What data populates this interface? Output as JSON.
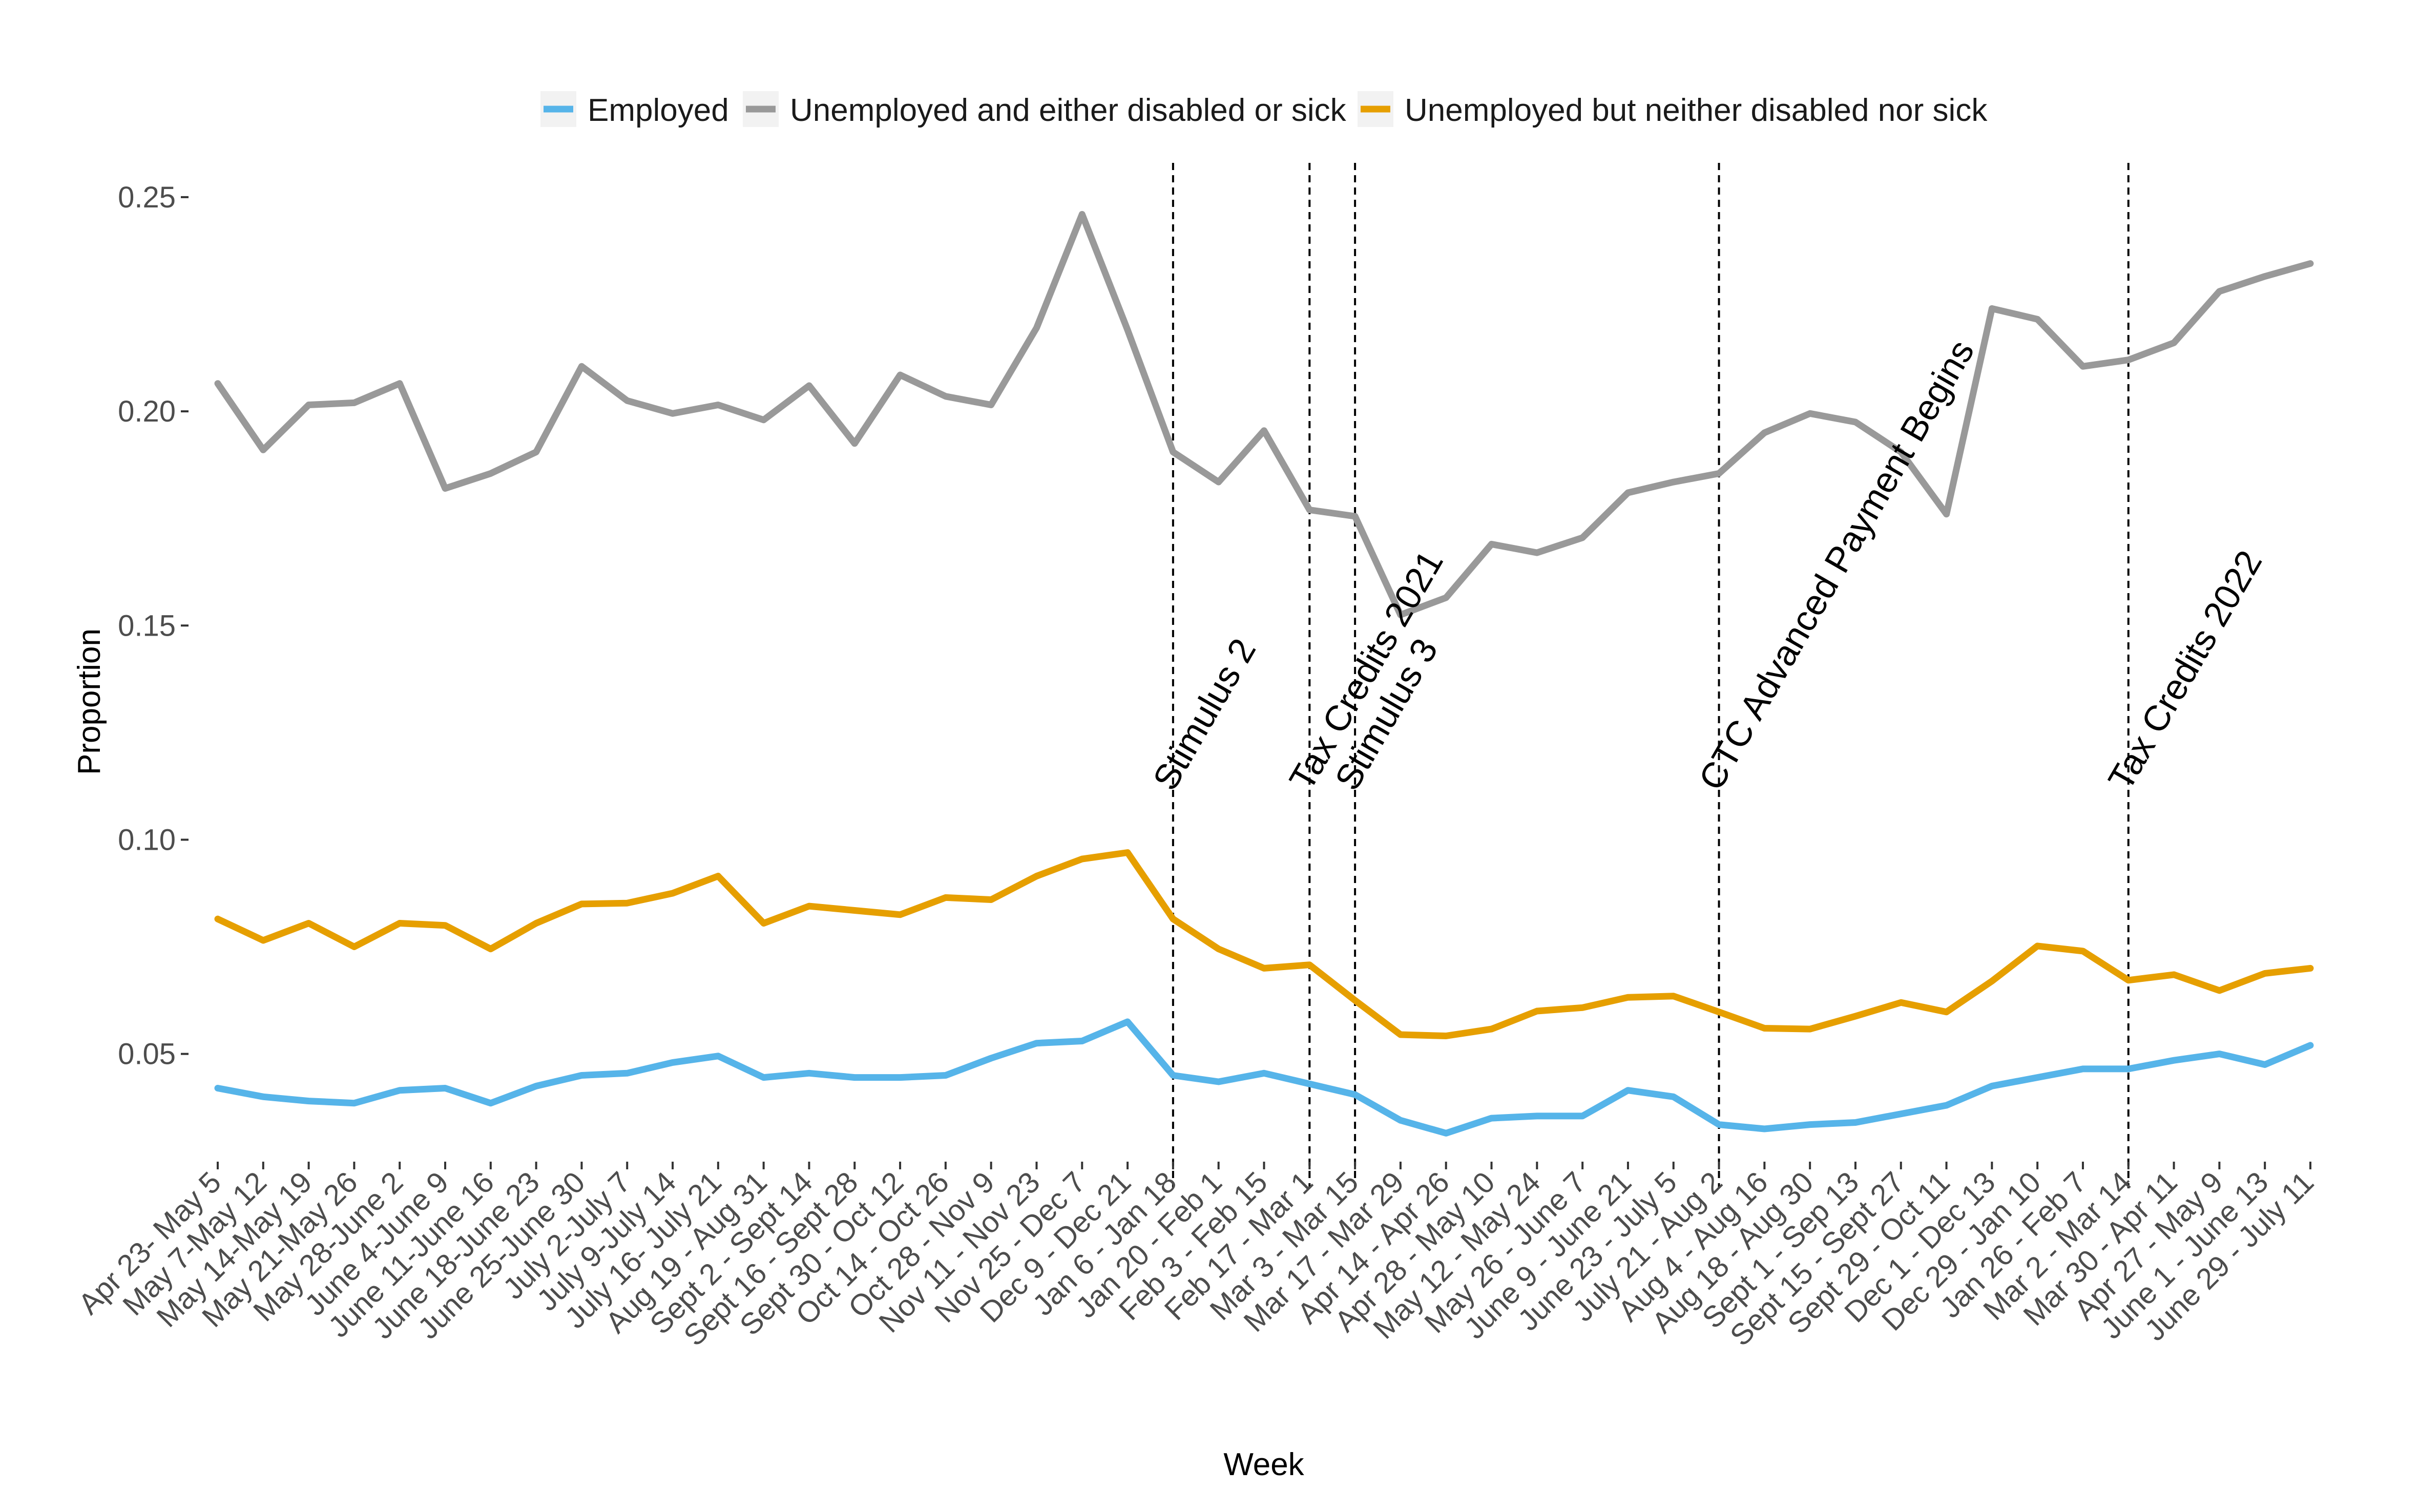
{
  "chart_data": {
    "type": "line",
    "xlabel": "Week",
    "ylabel": "Proportion",
    "ylim": [
      0.027,
      0.258
    ],
    "yticks": [
      0.05,
      0.1,
      0.15,
      0.2,
      0.25
    ],
    "ytick_labels": [
      "0.05",
      "0.10",
      "0.15",
      "0.20",
      "0.25"
    ],
    "grid": false,
    "legend_position": "top",
    "categories": [
      "Apr 23- May 5",
      "May 7-May 12",
      "May 14-May 19",
      "May 21-May 26",
      "May 28-June 2",
      "June 4-June 9",
      "June 11-June 16",
      "June 18-June 23",
      "June 25-June 30",
      "July 2-July 7",
      "July 9-July 14",
      "July 16- July 21",
      "Aug 19 - Aug 31",
      "Sept 2 - Sept 14",
      "Sept 16 - Sept 28",
      "Sept 30 - Oct 12",
      "Oct 14 - Oct 26",
      "Oct 28 - Nov 9",
      "Nov 11 - Nov 23",
      "Nov 25 - Dec 7",
      "Dec 9 - Dec 21",
      "Jan 6 - Jan 18",
      "Jan 20 - Feb 1",
      "Feb 3 - Feb 15",
      "Feb 17 - Mar 1",
      "Mar 3 - Mar 15",
      "Mar 17 - Mar 29",
      "Apr 14 - Apr 26",
      "Apr 28 - May 10",
      "May 12 - May 24",
      "May 26 - June 7",
      "June 9 - June 21",
      "June 23 - July 5",
      "July 21 - Aug 2",
      "Aug 4 - Aug 16",
      "Aug 18 - Aug 30",
      "Sept 1 - Sep 13",
      "Sept 15 - Sept 27",
      "Sept 29 - Oct 11",
      "Dec 1 - Dec 13",
      "Dec 29 - Jan 10",
      "Jan 26 - Feb 7",
      "Mar 2 - Mar 14",
      "Mar 30 - Apr 11",
      "Apr 27 - May 9",
      "June 1 - June 13",
      "June 29 - July 11"
    ],
    "series": [
      {
        "name": "Employed",
        "color": "#56B4E9",
        "values": [
          0.042,
          0.04,
          0.039,
          0.0385,
          0.0415,
          0.042,
          0.0385,
          0.0425,
          0.045,
          0.0455,
          0.048,
          0.0495,
          0.0445,
          0.0455,
          0.0445,
          0.0445,
          0.045,
          0.049,
          0.0525,
          0.053,
          0.0575,
          0.045,
          0.0435,
          0.0455,
          0.043,
          0.0405,
          0.0345,
          0.0315,
          0.035,
          0.0355,
          0.0355,
          0.0415,
          0.04,
          0.0335,
          0.0325,
          0.0335,
          0.034,
          0.036,
          0.038,
          0.0425,
          0.0445,
          0.0465,
          0.0465,
          0.0485,
          0.05,
          0.0475,
          0.052
        ]
      },
      {
        "name": "Unemployed and either disabled or sick",
        "color": "#999999",
        "values": [
          0.2065,
          0.191,
          0.2015,
          0.202,
          0.2065,
          0.182,
          0.1855,
          0.1905,
          0.2105,
          0.2025,
          0.1995,
          0.2015,
          0.198,
          0.206,
          0.1925,
          0.2085,
          0.2035,
          0.2015,
          0.2195,
          0.246,
          0.219,
          0.1905,
          0.1835,
          0.1955,
          0.177,
          0.1755,
          0.1525,
          0.1565,
          0.169,
          0.167,
          0.1705,
          0.181,
          0.1835,
          0.1855,
          0.195,
          0.1995,
          0.1975,
          0.1905,
          0.176,
          0.224,
          0.2215,
          0.2105,
          0.212,
          0.216,
          0.228,
          0.2315,
          0.2345
        ]
      },
      {
        "name": "Unemployed but neither disabled nor sick",
        "color": "#E69F00",
        "values": [
          0.0815,
          0.0765,
          0.0805,
          0.075,
          0.0805,
          0.08,
          0.0745,
          0.0805,
          0.085,
          0.0852,
          0.0875,
          0.0915,
          0.0805,
          0.0845,
          0.0835,
          0.0825,
          0.0865,
          0.086,
          0.0915,
          0.0955,
          0.097,
          0.0815,
          0.0745,
          0.07,
          0.0708,
          0.0625,
          0.0545,
          0.0542,
          0.0558,
          0.06,
          0.0608,
          0.0632,
          0.0635,
          0.0598,
          0.056,
          0.0558,
          0.0588,
          0.062,
          0.0598,
          0.067,
          0.0752,
          0.074,
          0.0672,
          0.0685,
          0.0648,
          0.0688,
          0.07
        ]
      }
    ],
    "annotations": [
      {
        "label": "Stimulus 2",
        "at": "Jan 6 - Jan 18"
      },
      {
        "label": "Tax Credits 2021",
        "at": "Feb 17 - Mar 1"
      },
      {
        "label": "Stimulus 3",
        "at": "Mar 3 - Mar 15"
      },
      {
        "label": "CTC Advanced Payment Begins",
        "at": "July 21 - Aug 2"
      },
      {
        "label": "Tax Credits 2022",
        "at": "Mar 2 - Mar 14"
      }
    ]
  }
}
